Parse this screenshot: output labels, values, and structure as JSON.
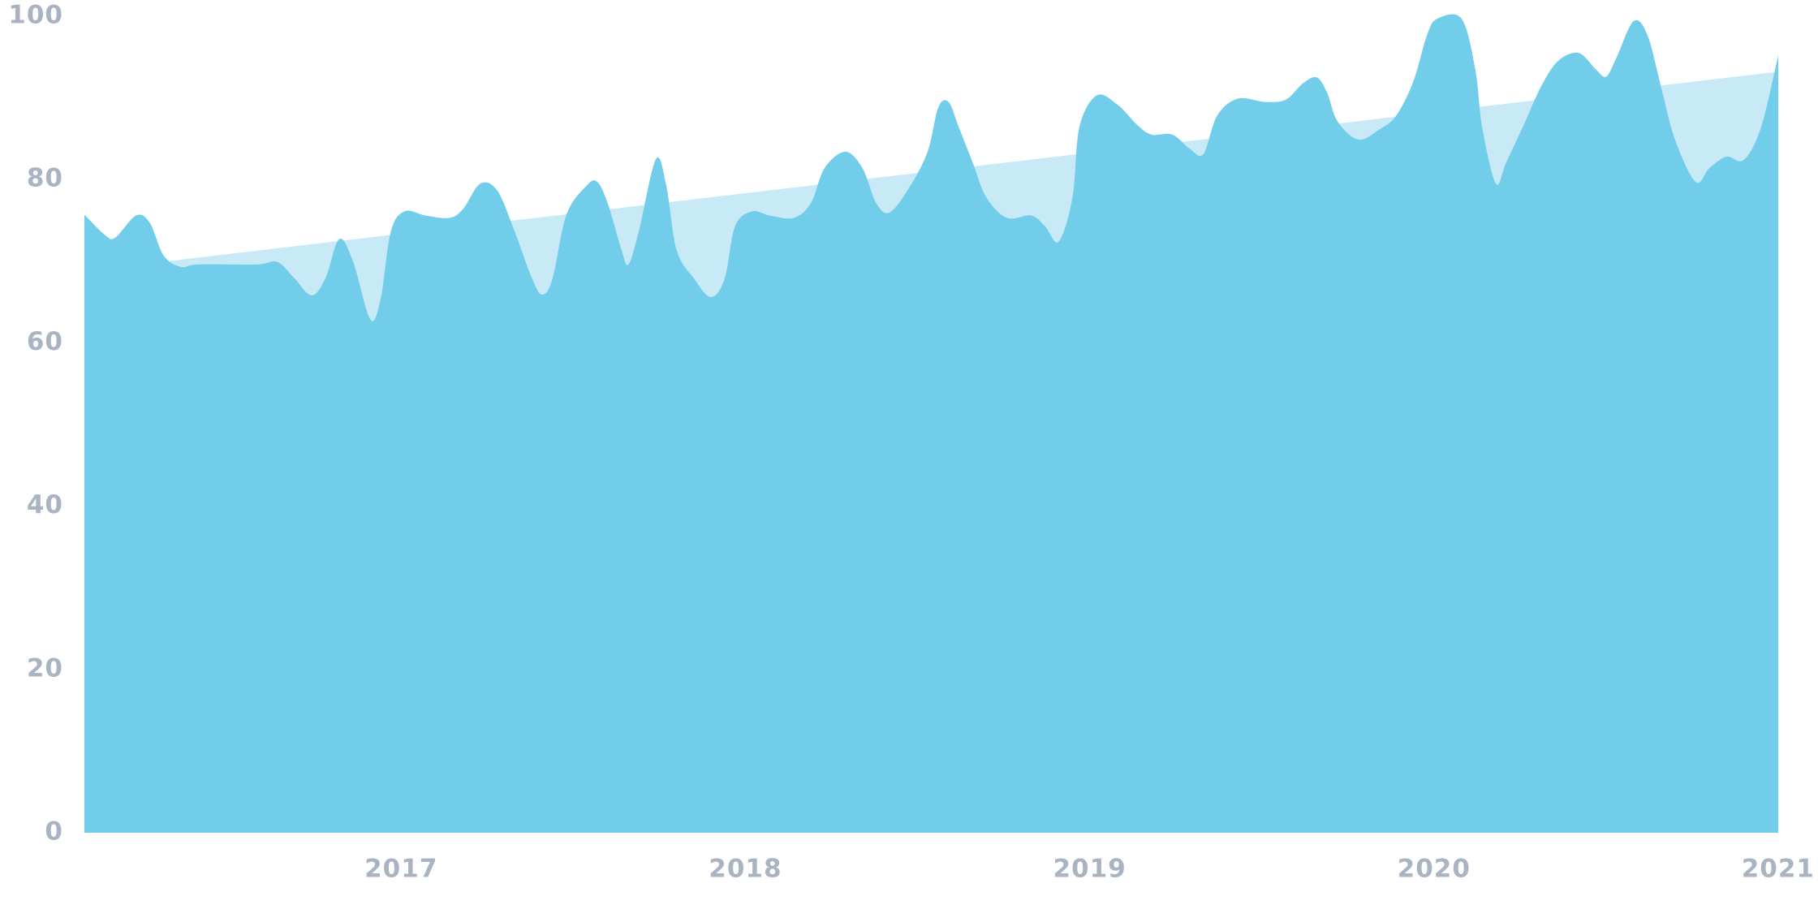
{
  "chart_data": {
    "type": "area",
    "xlim": [
      2016.08,
      2021
    ],
    "xticks": [
      2017,
      2018,
      2019,
      2020,
      2021
    ],
    "ylim": [
      0,
      100
    ],
    "yticks": [
      0,
      20,
      40,
      60,
      80,
      100
    ],
    "grid": false,
    "series": [
      {
        "color": "#c8eaf6",
        "x": [
          2016.08,
          2021
        ],
        "values": [
          68.8,
          93.2
        ]
      },
      {
        "color": "#72cdea",
        "x": [
          2016.08,
          2016.14,
          2016.17,
          2016.23,
          2016.27,
          2016.31,
          2016.36,
          2016.41,
          2016.58,
          2016.64,
          2016.69,
          2016.74,
          2016.78,
          2016.82,
          2016.86,
          2016.91,
          2016.94,
          2016.97,
          2017.01,
          2017.07,
          2017.14,
          2017.18,
          2017.23,
          2017.28,
          2017.33,
          2017.38,
          2017.41,
          2017.44,
          2017.48,
          2017.54,
          2017.57,
          2017.6,
          2017.64,
          2017.66,
          2017.69,
          2017.74,
          2017.77,
          2017.8,
          2017.85,
          2017.9,
          2017.94,
          2017.97,
          2018.02,
          2018.07,
          2018.14,
          2018.19,
          2018.23,
          2018.29,
          2018.34,
          2018.38,
          2018.42,
          2018.48,
          2018.53,
          2018.56,
          2018.59,
          2018.62,
          2018.66,
          2018.7,
          2018.76,
          2018.83,
          2018.87,
          2018.91,
          2018.95,
          2018.97,
          2019.02,
          2019.08,
          2019.14,
          2019.18,
          2019.24,
          2019.29,
          2019.33,
          2019.37,
          2019.43,
          2019.51,
          2019.57,
          2019.62,
          2019.66,
          2019.69,
          2019.72,
          2019.78,
          2019.84,
          2019.89,
          2019.94,
          2019.98,
          2020.01,
          2020.08,
          2020.12,
          2020.14,
          2020.18,
          2020.21,
          2020.26,
          2020.31,
          2020.36,
          2020.42,
          2020.47,
          2020.5,
          2020.53,
          2020.58,
          2020.62,
          2020.66,
          2020.7,
          2020.76,
          2020.8,
          2020.85,
          2020.9,
          2020.95,
          2021.0
        ],
        "values": [
          75.7,
          73.2,
          72.9,
          75.6,
          74.7,
          70.7,
          69.3,
          69.6,
          69.6,
          69.9,
          67.9,
          65.8,
          67.9,
          72.7,
          70.0,
          62.9,
          65.3,
          73.6,
          76.1,
          75.6,
          75.3,
          76.4,
          79.5,
          78.6,
          73.6,
          67.9,
          65.9,
          67.9,
          75.7,
          79.3,
          79.7,
          77.1,
          71.4,
          69.6,
          73.6,
          82.5,
          79.3,
          71.4,
          67.9,
          65.6,
          67.9,
          74.3,
          76.1,
          75.6,
          75.3,
          77.1,
          81.4,
          83.4,
          81.4,
          77.1,
          76.0,
          79.3,
          83.5,
          88.8,
          89.5,
          86.4,
          82.1,
          77.8,
          75.3,
          75.6,
          74.3,
          72.4,
          77.8,
          86.4,
          90.3,
          89.2,
          86.6,
          85.5,
          85.5,
          83.8,
          83.1,
          87.8,
          89.9,
          89.5,
          89.8,
          91.8,
          92.5,
          90.6,
          87.1,
          84.9,
          86.1,
          87.8,
          92.0,
          97.7,
          99.7,
          99.7,
          93.5,
          86.4,
          79.5,
          82.1,
          86.6,
          91.3,
          94.5,
          95.5,
          93.5,
          92.6,
          94.9,
          99.4,
          97.7,
          91.3,
          84.9,
          79.7,
          81.4,
          82.8,
          82.4,
          86.4,
          95.2
        ]
      }
    ]
  }
}
